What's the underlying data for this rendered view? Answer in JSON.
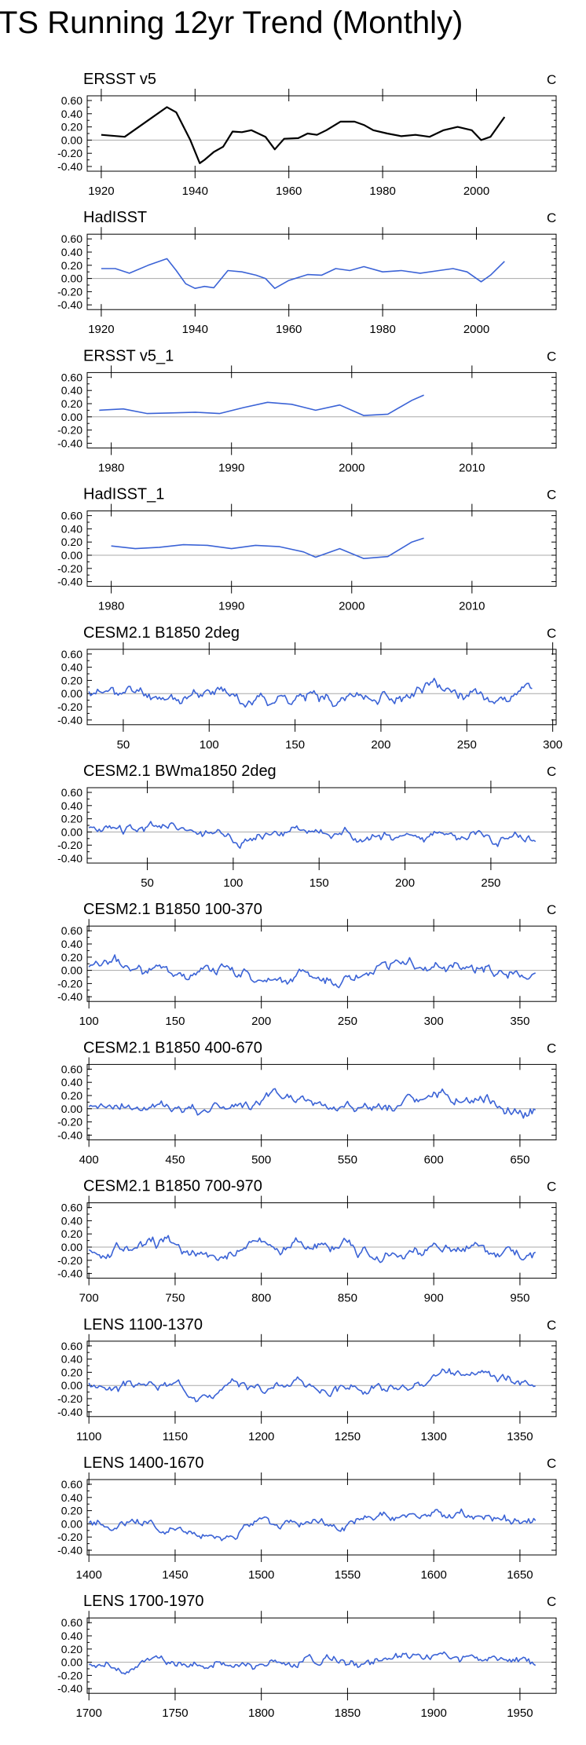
{
  "title": "TS Running 12yr Trend (Monthly)",
  "colors": {
    "obs": "#000000",
    "model": "#3b63d6",
    "zero": "#a8a8a8",
    "frame": "#000000"
  },
  "chart_data": [
    {
      "type": "line",
      "title": "ERSST v5",
      "units": "C",
      "color_key": "obs",
      "xlim": [
        1917,
        2017
      ],
      "ylim": [
        -0.4,
        0.6
      ],
      "xticks": [
        1920,
        1940,
        1960,
        1980,
        2000
      ],
      "yticks": [
        -0.4,
        -0.2,
        0.0,
        0.2,
        0.4,
        0.6
      ],
      "ytick_labels": [
        "-0.40",
        "-0.20",
        "0.00",
        "0.20",
        "0.40",
        "0.60"
      ],
      "x": [
        1920,
        1925,
        1930,
        1934,
        1936,
        1939,
        1941,
        1942,
        1944,
        1946,
        1948,
        1950,
        1952,
        1955,
        1957,
        1959,
        1962,
        1964,
        1966,
        1968,
        1971,
        1974,
        1976,
        1978,
        1981,
        1984,
        1987,
        1990,
        1993,
        1996,
        1999,
        2001,
        2003,
        2006
      ],
      "y": [
        0.08,
        0.05,
        0.3,
        0.5,
        0.42,
        0.0,
        -0.35,
        -0.3,
        -0.18,
        -0.1,
        0.13,
        0.12,
        0.15,
        0.05,
        -0.14,
        0.02,
        0.03,
        0.1,
        0.08,
        0.15,
        0.28,
        0.28,
        0.23,
        0.15,
        0.1,
        0.06,
        0.08,
        0.05,
        0.15,
        0.2,
        0.15,
        0.0,
        0.05,
        0.35
      ]
    },
    {
      "type": "line",
      "title": "HadISST",
      "units": "C",
      "color_key": "model",
      "xlim": [
        1917,
        2017
      ],
      "ylim": [
        -0.4,
        0.6
      ],
      "xticks": [
        1920,
        1940,
        1960,
        1980,
        2000
      ],
      "yticks": [
        -0.4,
        -0.2,
        0.0,
        0.2,
        0.4,
        0.6
      ],
      "ytick_labels": [
        "-0.40",
        "-0.20",
        "0.00",
        "0.20",
        "0.40",
        "0.60"
      ],
      "x": [
        1920,
        1923,
        1926,
        1930,
        1934,
        1936,
        1938,
        1940,
        1942,
        1944,
        1947,
        1950,
        1953,
        1955,
        1957,
        1960,
        1964,
        1967,
        1970,
        1973,
        1976,
        1980,
        1984,
        1988,
        1992,
        1995,
        1998,
        2001,
        2003,
        2006
      ],
      "y": [
        0.15,
        0.15,
        0.08,
        0.2,
        0.3,
        0.12,
        -0.08,
        -0.15,
        -0.12,
        -0.14,
        0.12,
        0.1,
        0.05,
        0.0,
        -0.15,
        -0.03,
        0.06,
        0.05,
        0.15,
        0.12,
        0.18,
        0.1,
        0.12,
        0.08,
        0.12,
        0.15,
        0.1,
        -0.05,
        0.05,
        0.26
      ]
    },
    {
      "type": "line",
      "title": "ERSST v5_1",
      "units": "C",
      "color_key": "model",
      "xlim": [
        1978,
        2017
      ],
      "ylim": [
        -0.4,
        0.6
      ],
      "xticks": [
        1980,
        1990,
        2000,
        2010
      ],
      "yticks": [
        -0.4,
        -0.2,
        0.0,
        0.2,
        0.4,
        0.6
      ],
      "ytick_labels": [
        "-0.40",
        "-0.20",
        "0.00",
        "0.20",
        "0.40",
        "0.60"
      ],
      "x": [
        1979,
        1981,
        1983,
        1985,
        1987,
        1989,
        1991,
        1993,
        1995,
        1997,
        1999,
        2001,
        2003,
        2005,
        2006
      ],
      "y": [
        0.1,
        0.12,
        0.05,
        0.06,
        0.07,
        0.05,
        0.14,
        0.22,
        0.19,
        0.1,
        0.18,
        0.02,
        0.04,
        0.25,
        0.33
      ]
    },
    {
      "type": "line",
      "title": "HadISST_1",
      "units": "C",
      "color_key": "model",
      "xlim": [
        1978,
        2017
      ],
      "ylim": [
        -0.4,
        0.6
      ],
      "xticks": [
        1980,
        1990,
        2000,
        2010
      ],
      "yticks": [
        -0.4,
        -0.2,
        0.0,
        0.2,
        0.4,
        0.6
      ],
      "ytick_labels": [
        "-0.40",
        "-0.20",
        "0.00",
        "0.20",
        "0.40",
        "0.60"
      ],
      "x": [
        1980,
        1982,
        1984,
        1986,
        1988,
        1990,
        1992,
        1994,
        1996,
        1997,
        1999,
        2001,
        2003,
        2005,
        2006
      ],
      "y": [
        0.14,
        0.1,
        0.12,
        0.16,
        0.15,
        0.1,
        0.15,
        0.13,
        0.05,
        -0.03,
        0.1,
        -0.05,
        -0.02,
        0.2,
        0.26
      ]
    },
    {
      "type": "line",
      "title": "CESM2.1 B1850 2deg",
      "units": "C",
      "color_key": "model",
      "xlim": [
        29,
        302
      ],
      "ylim": [
        -0.4,
        0.6
      ],
      "xticks": [
        50,
        100,
        150,
        200,
        250,
        300
      ],
      "yticks": [
        -0.4,
        -0.2,
        0.0,
        0.2,
        0.4,
        0.6
      ],
      "ytick_labels": [
        "-0.40",
        "-0.20",
        "0.00",
        "0.20",
        "0.40",
        "0.60"
      ],
      "x_range": [
        30,
        288
      ],
      "seed": 11,
      "amp": 0.13
    },
    {
      "type": "line",
      "title": "CESM2.1 BWma1850 2deg",
      "units": "C",
      "color_key": "model",
      "xlim": [
        15,
        288
      ],
      "ylim": [
        -0.4,
        0.6
      ],
      "xticks": [
        50,
        100,
        150,
        200,
        250
      ],
      "yticks": [
        -0.4,
        -0.2,
        0.0,
        0.2,
        0.4,
        0.6
      ],
      "ytick_labels": [
        "-0.40",
        "-0.20",
        "0.00",
        "0.20",
        "0.40",
        "0.60"
      ],
      "x_range": [
        16,
        276
      ],
      "seed": 23,
      "amp": 0.11
    },
    {
      "type": "line",
      "title": "CESM2.1 B1850 100-370",
      "units": "C",
      "color_key": "model",
      "xlim": [
        99,
        371
      ],
      "ylim": [
        -0.4,
        0.6
      ],
      "xticks": [
        100,
        150,
        200,
        250,
        300,
        350
      ],
      "yticks": [
        -0.4,
        -0.2,
        0.0,
        0.2,
        0.4,
        0.6
      ],
      "ytick_labels": [
        "-0.40",
        "-0.20",
        "0.00",
        "0.20",
        "0.40",
        "0.60"
      ],
      "x_range": [
        100,
        359
      ],
      "seed": 37,
      "amp": 0.13
    },
    {
      "type": "line",
      "title": "CESM2.1 B1850 400-670",
      "units": "C",
      "color_key": "model",
      "xlim": [
        399,
        671
      ],
      "ylim": [
        -0.4,
        0.6
      ],
      "xticks": [
        400,
        450,
        500,
        550,
        600,
        650
      ],
      "yticks": [
        -0.4,
        -0.2,
        0.0,
        0.2,
        0.4,
        0.6
      ],
      "ytick_labels": [
        "-0.40",
        "-0.20",
        "0.00",
        "0.20",
        "0.40",
        "0.60"
      ],
      "x_range": [
        400,
        659
      ],
      "seed": 41,
      "amp": 0.12
    },
    {
      "type": "line",
      "title": "CESM2.1 B1850 700-970",
      "units": "C",
      "color_key": "model",
      "xlim": [
        699,
        971
      ],
      "ylim": [
        -0.4,
        0.6
      ],
      "xticks": [
        700,
        750,
        800,
        850,
        900,
        950
      ],
      "yticks": [
        -0.4,
        -0.2,
        0.0,
        0.2,
        0.4,
        0.6
      ],
      "ytick_labels": [
        "-0.40",
        "-0.20",
        "0.00",
        "0.20",
        "0.40",
        "0.60"
      ],
      "x_range": [
        700,
        959
      ],
      "seed": 53,
      "amp": 0.13
    },
    {
      "type": "line",
      "title": "LENS 1100-1370",
      "units": "C",
      "color_key": "model",
      "xlim": [
        1099,
        1371
      ],
      "ylim": [
        -0.4,
        0.6
      ],
      "xticks": [
        1100,
        1150,
        1200,
        1250,
        1300,
        1350
      ],
      "yticks": [
        -0.4,
        -0.2,
        0.0,
        0.2,
        0.4,
        0.6
      ],
      "ytick_labels": [
        "-0.40",
        "-0.20",
        "0.00",
        "0.20",
        "0.40",
        "0.60"
      ],
      "x_range": [
        1100,
        1359
      ],
      "seed": 67,
      "amp": 0.1
    },
    {
      "type": "line",
      "title": "LENS 1400-1670",
      "units": "C",
      "color_key": "model",
      "xlim": [
        1399,
        1671
      ],
      "ylim": [
        -0.4,
        0.6
      ],
      "xticks": [
        1400,
        1450,
        1500,
        1550,
        1600,
        1650
      ],
      "yticks": [
        -0.4,
        -0.2,
        0.0,
        0.2,
        0.4,
        0.6
      ],
      "ytick_labels": [
        "-0.40",
        "-0.20",
        "0.00",
        "0.20",
        "0.40",
        "0.60"
      ],
      "x_range": [
        1400,
        1659
      ],
      "seed": 79,
      "amp": 0.1
    },
    {
      "type": "line",
      "title": "LENS 1700-1970",
      "units": "C",
      "color_key": "model",
      "xlim": [
        1699,
        1971
      ],
      "ylim": [
        -0.4,
        0.6
      ],
      "xticks": [
        1700,
        1750,
        1800,
        1850,
        1900,
        1950
      ],
      "yticks": [
        -0.4,
        -0.2,
        0.0,
        0.2,
        0.4,
        0.6
      ],
      "ytick_labels": [
        "-0.40",
        "-0.20",
        "0.00",
        "0.20",
        "0.40",
        "0.60"
      ],
      "x_range": [
        1700,
        1959
      ],
      "seed": 83,
      "amp": 0.1
    }
  ]
}
